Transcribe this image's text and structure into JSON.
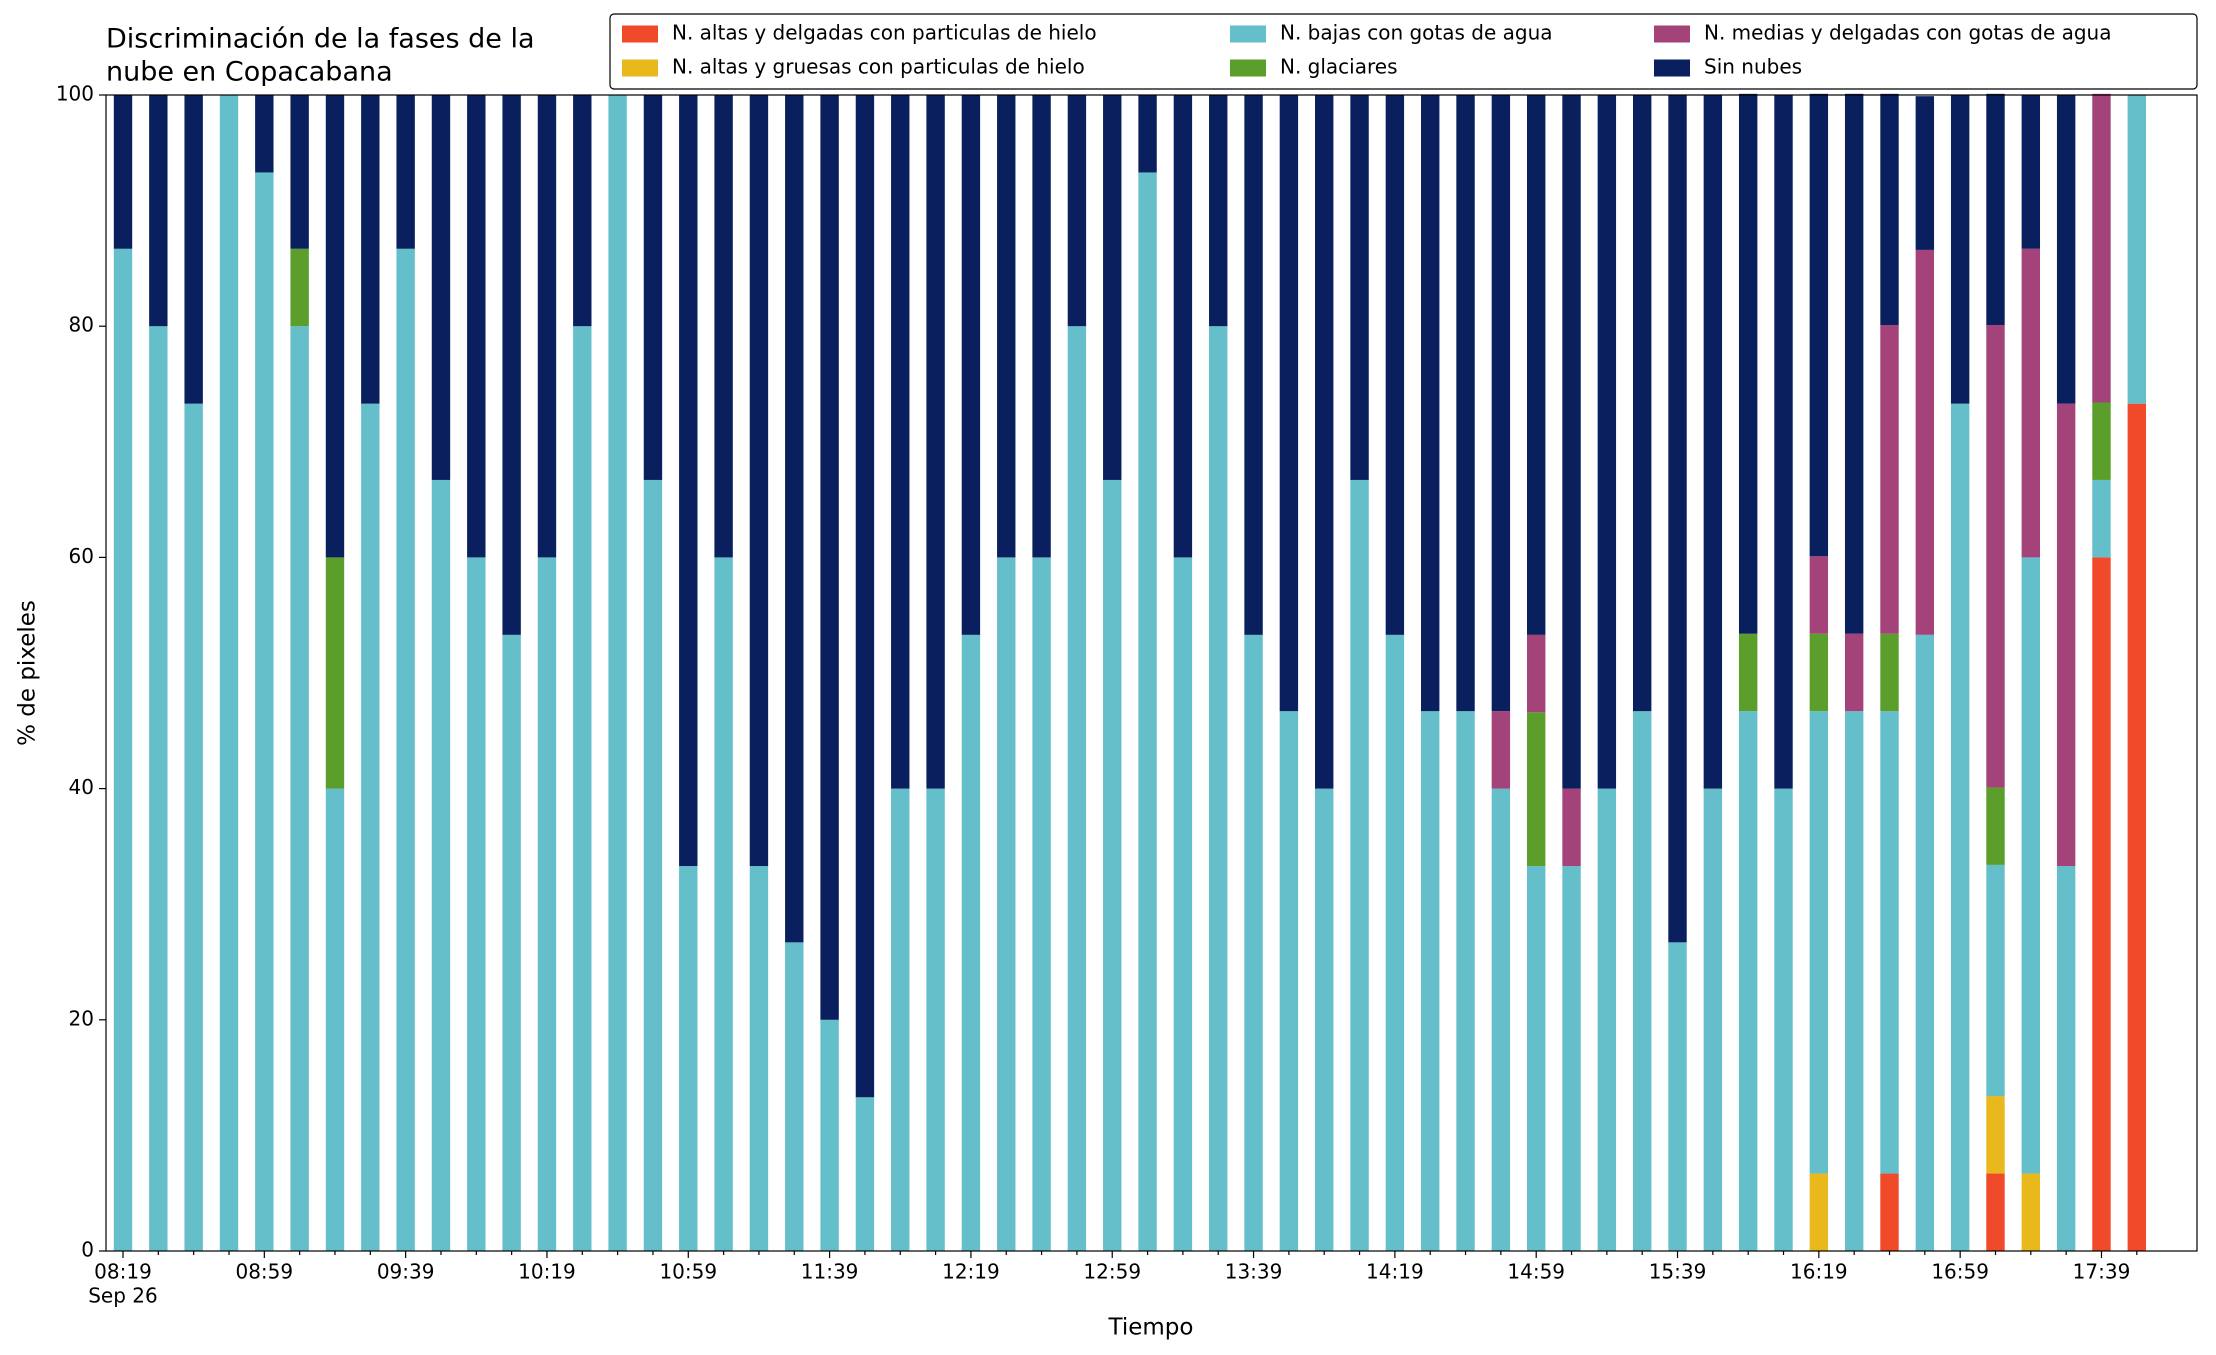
{
  "chart_data": {
    "type": "stacked_bar",
    "title": [
      "Discriminación de la fases de la",
      "nube en Copacabana"
    ],
    "xlabel": "Tiempo",
    "ylabel": "% de pixeles",
    "date_label": "Sep 26",
    "categories": [
      "08:19",
      null,
      null,
      null,
      "08:59",
      null,
      null,
      null,
      "09:39",
      null,
      null,
      null,
      "10:19",
      null,
      null,
      null,
      "10:59",
      null,
      null,
      null,
      "11:39",
      null,
      null,
      null,
      "12:19",
      null,
      null,
      null,
      "12:59",
      null,
      null,
      null,
      "13:39",
      null,
      null,
      null,
      "14:19",
      null,
      null,
      null,
      "14:59",
      null,
      null,
      null,
      "15:39",
      null,
      null,
      null,
      "16:19",
      null,
      null,
      null,
      "16:59",
      null,
      null,
      null,
      "17:39",
      null
    ],
    "ylim": [
      0,
      100
    ],
    "yticks": [
      0,
      20,
      40,
      60,
      80,
      100
    ],
    "grid": false,
    "series": [
      {
        "name": "N. altas y delgadas con particulas de hielo",
        "color": "#f04a2a",
        "values": [
          0,
          0,
          0,
          0,
          0,
          0,
          0,
          0,
          0,
          0,
          0,
          0,
          0,
          0,
          0,
          0,
          0,
          0,
          0,
          0,
          0,
          0,
          0,
          0,
          0,
          0,
          0,
          0,
          0,
          0,
          0,
          0,
          0,
          0,
          0,
          0,
          0,
          0,
          0,
          0,
          0,
          0,
          0,
          0,
          0,
          0,
          0,
          0,
          0,
          0,
          6.7,
          0,
          0,
          6.7,
          0,
          0,
          60,
          73.3
        ]
      },
      {
        "name": "N. altas y gruesas con particulas de hielo",
        "color": "#e8b81c",
        "values": [
          0,
          0,
          0,
          0,
          0,
          0,
          0,
          0,
          0,
          0,
          0,
          0,
          0,
          0,
          0,
          0,
          0,
          0,
          0,
          0,
          0,
          0,
          0,
          0,
          0,
          0,
          0,
          0,
          0,
          0,
          0,
          0,
          0,
          0,
          0,
          0,
          0,
          0,
          0,
          0,
          0,
          0,
          0,
          0,
          0,
          0,
          0,
          0,
          6.7,
          0,
          0,
          0,
          0,
          6.7,
          6.7,
          0,
          0,
          0
        ]
      },
      {
        "name": "N. bajas con gotas de agua",
        "color": "#64bfca",
        "values": [
          86.7,
          80,
          73.3,
          100,
          93.3,
          80,
          40,
          73.3,
          86.7,
          66.7,
          60,
          53.3,
          60,
          80,
          100,
          66.7,
          33.3,
          60,
          33.3,
          26.7,
          20,
          13.3,
          40,
          40,
          53.3,
          60,
          60,
          80,
          66.7,
          93.3,
          60,
          80,
          53.3,
          46.7,
          40,
          66.7,
          53.3,
          46.7,
          46.7,
          40,
          33.3,
          33.3,
          40,
          46.7,
          26.7,
          40,
          46.7,
          40,
          40,
          46.7,
          40,
          53.3,
          73.3,
          20,
          53.3,
          33.3,
          6.7,
          26.7
        ]
      },
      {
        "name": "N. glaciares",
        "color": "#5c9e2c",
        "values": [
          0,
          0,
          0,
          0,
          0,
          6.7,
          20,
          0,
          0,
          0,
          0,
          0,
          0,
          0,
          0,
          0,
          0,
          0,
          0,
          0,
          0,
          0,
          0,
          0,
          0,
          0,
          0,
          0,
          0,
          0,
          0,
          0,
          0,
          0,
          0,
          0,
          0,
          0,
          0,
          0,
          13.3,
          0,
          0,
          0,
          0,
          0,
          6.7,
          0,
          6.7,
          0,
          6.7,
          0,
          0,
          6.7,
          0,
          0,
          6.7,
          0
        ]
      },
      {
        "name": "N. medias y delgadas con gotas de agua",
        "color": "#a3437a",
        "values": [
          0,
          0,
          0,
          0,
          0,
          0,
          0,
          0,
          0,
          0,
          0,
          0,
          0,
          0,
          0,
          0,
          0,
          0,
          0,
          0,
          0,
          0,
          0,
          0,
          0,
          0,
          0,
          0,
          0,
          0,
          0,
          0,
          0,
          0,
          0,
          0,
          0,
          0,
          0,
          6.7,
          6.7,
          6.7,
          0,
          0,
          0,
          0,
          0,
          0,
          6.7,
          6.7,
          26.7,
          33.3,
          0,
          40,
          26.7,
          40,
          26.7,
          0
        ]
      },
      {
        "name": "Sin nubes",
        "color": "#0a1f5e",
        "values": [
          13.3,
          20,
          26.7,
          0,
          6.7,
          13.3,
          40,
          26.7,
          13.3,
          33.3,
          40,
          46.7,
          40,
          20,
          0,
          33.3,
          66.7,
          40,
          66.7,
          73.3,
          80,
          86.7,
          60,
          60,
          46.7,
          40,
          40,
          20,
          33.3,
          6.7,
          40,
          20,
          46.7,
          53.3,
          60,
          33.3,
          46.7,
          53.3,
          53.3,
          53.3,
          46.7,
          60,
          60,
          53.3,
          73.3,
          60,
          46.7,
          60,
          40,
          46.7,
          20,
          13.3,
          26.7,
          20,
          13.3,
          26.7,
          0,
          0
        ]
      }
    ]
  }
}
